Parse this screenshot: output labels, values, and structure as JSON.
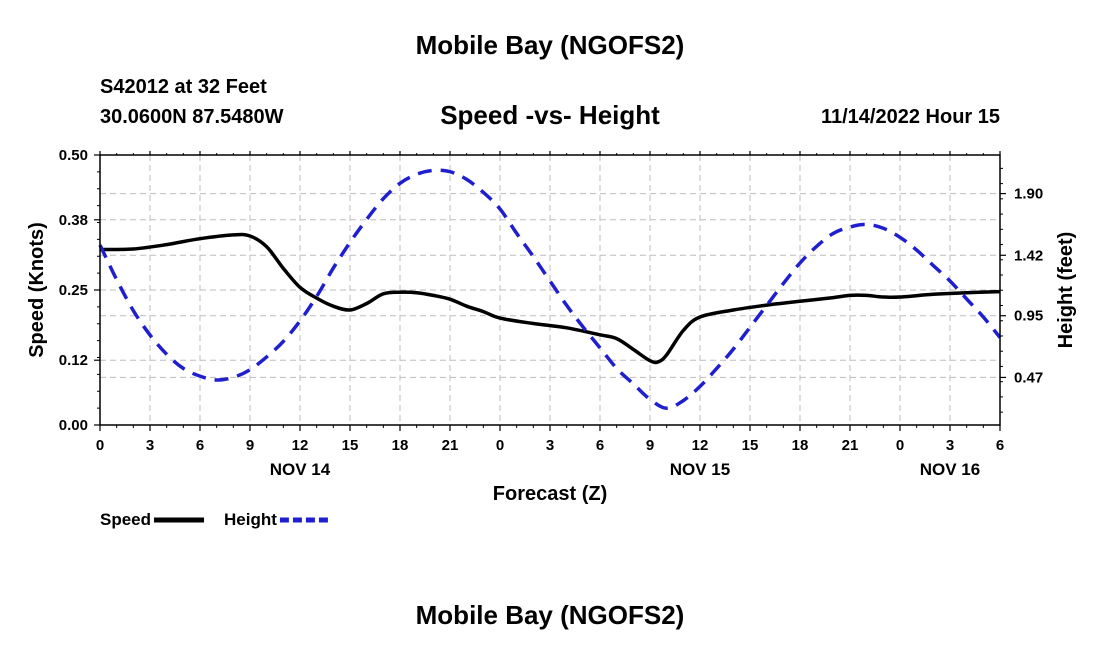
{
  "header": {
    "title": "Mobile Bay (NGOFS2)",
    "station": "S42012 at 32 Feet",
    "coords": "30.0600N  87.5480W",
    "subtitle": "Speed -vs- Height",
    "datetime": "11/14/2022 Hour 15"
  },
  "footer": {
    "title": "Mobile Bay (NGOFS2)"
  },
  "chart_data": {
    "type": "line",
    "title": "Speed -vs- Height",
    "xlabel": "Forecast (Z)",
    "ylabel_left": "Speed (Knots)",
    "ylabel_right": "Height (feet)",
    "x_hours_range": [
      0,
      54
    ],
    "x_ticks": [
      {
        "h": 0,
        "label": "0"
      },
      {
        "h": 3,
        "label": "3"
      },
      {
        "h": 6,
        "label": "6"
      },
      {
        "h": 9,
        "label": "9"
      },
      {
        "h": 12,
        "label": "12"
      },
      {
        "h": 15,
        "label": "15"
      },
      {
        "h": 18,
        "label": "18"
      },
      {
        "h": 21,
        "label": "21"
      },
      {
        "h": 24,
        "label": "0"
      },
      {
        "h": 27,
        "label": "3"
      },
      {
        "h": 30,
        "label": "6"
      },
      {
        "h": 33,
        "label": "9"
      },
      {
        "h": 36,
        "label": "12"
      },
      {
        "h": 39,
        "label": "15"
      },
      {
        "h": 42,
        "label": "18"
      },
      {
        "h": 45,
        "label": "21"
      },
      {
        "h": 48,
        "label": "0"
      },
      {
        "h": 51,
        "label": "3"
      },
      {
        "h": 54,
        "label": "6"
      }
    ],
    "day_labels": [
      {
        "h": 12,
        "label": "NOV 14"
      },
      {
        "h": 36,
        "label": "NOV 15"
      },
      {
        "h": 51,
        "label": "NOV 16"
      }
    ],
    "y_left": {
      "range": [
        0,
        0.5
      ],
      "ticks": [
        0.0,
        0.12,
        0.25,
        0.38,
        0.5
      ],
      "tick_labels": [
        "0.00",
        "0.12",
        "0.25",
        "0.38",
        "0.50"
      ]
    },
    "y_right": {
      "range": [
        0.1,
        2.2
      ],
      "ticks": [
        0.47,
        0.95,
        1.42,
        1.9
      ],
      "tick_labels": [
        "0.47",
        "0.95",
        "1.42",
        "1.90"
      ]
    },
    "series": [
      {
        "name": "Speed",
        "axis": "left",
        "color": "#000000",
        "style": "solid",
        "points": [
          [
            0,
            0.325
          ],
          [
            2,
            0.326
          ],
          [
            4,
            0.334
          ],
          [
            6,
            0.345
          ],
          [
            8,
            0.352
          ],
          [
            9,
            0.35
          ],
          [
            10,
            0.33
          ],
          [
            11,
            0.29
          ],
          [
            12,
            0.255
          ],
          [
            13,
            0.235
          ],
          [
            14,
            0.22
          ],
          [
            15,
            0.213
          ],
          [
            16,
            0.225
          ],
          [
            17,
            0.243
          ],
          [
            18,
            0.246
          ],
          [
            19,
            0.245
          ],
          [
            20,
            0.24
          ],
          [
            21,
            0.233
          ],
          [
            22,
            0.22
          ],
          [
            23,
            0.21
          ],
          [
            24,
            0.198
          ],
          [
            26,
            0.188
          ],
          [
            28,
            0.18
          ],
          [
            30,
            0.167
          ],
          [
            31,
            0.16
          ],
          [
            32,
            0.14
          ],
          [
            33,
            0.119
          ],
          [
            33.5,
            0.117
          ],
          [
            34,
            0.13
          ],
          [
            35,
            0.175
          ],
          [
            36,
            0.2
          ],
          [
            38,
            0.213
          ],
          [
            40,
            0.222
          ],
          [
            42,
            0.229
          ],
          [
            44,
            0.236
          ],
          [
            45,
            0.24
          ],
          [
            46,
            0.24
          ],
          [
            47,
            0.237
          ],
          [
            48,
            0.237
          ],
          [
            50,
            0.242
          ],
          [
            52,
            0.245
          ],
          [
            54,
            0.247
          ]
        ]
      },
      {
        "name": "Height",
        "axis": "right",
        "color": "#1f1fd0",
        "style": "dashed",
        "points": [
          [
            0,
            1.5
          ],
          [
            1,
            1.23
          ],
          [
            2,
            0.99
          ],
          [
            3,
            0.8
          ],
          [
            4,
            0.65
          ],
          [
            5,
            0.54
          ],
          [
            6,
            0.48
          ],
          [
            7,
            0.45
          ],
          [
            8,
            0.47
          ],
          [
            9,
            0.53
          ],
          [
            10,
            0.63
          ],
          [
            11,
            0.75
          ],
          [
            12,
            0.91
          ],
          [
            13,
            1.1
          ],
          [
            14,
            1.32
          ],
          [
            15,
            1.52
          ],
          [
            16,
            1.7
          ],
          [
            17,
            1.86
          ],
          [
            18,
            1.98
          ],
          [
            19,
            2.05
          ],
          [
            20,
            2.08
          ],
          [
            21,
            2.07
          ],
          [
            22,
            2.01
          ],
          [
            23,
            1.91
          ],
          [
            24,
            1.78
          ],
          [
            25,
            1.59
          ],
          [
            26,
            1.41
          ],
          [
            27,
            1.22
          ],
          [
            28,
            1.03
          ],
          [
            29,
            0.86
          ],
          [
            30,
            0.7
          ],
          [
            31,
            0.54
          ],
          [
            32,
            0.42
          ],
          [
            33,
            0.3
          ],
          [
            34,
            0.23
          ],
          [
            35,
            0.29
          ],
          [
            36,
            0.4
          ],
          [
            37,
            0.54
          ],
          [
            38,
            0.69
          ],
          [
            39,
            0.86
          ],
          [
            40,
            1.03
          ],
          [
            41,
            1.2
          ],
          [
            42,
            1.36
          ],
          [
            43,
            1.49
          ],
          [
            44,
            1.59
          ],
          [
            45,
            1.64
          ],
          [
            46,
            1.66
          ],
          [
            47,
            1.63
          ],
          [
            48,
            1.56
          ],
          [
            49,
            1.46
          ],
          [
            50,
            1.34
          ],
          [
            51,
            1.22
          ],
          [
            52,
            1.08
          ],
          [
            53,
            0.94
          ],
          [
            54,
            0.78
          ]
        ]
      }
    ],
    "legend": [
      {
        "name": "Speed",
        "color": "#000000",
        "style": "solid"
      },
      {
        "name": "Height",
        "color": "#1f1fd0",
        "style": "dashed"
      }
    ]
  }
}
